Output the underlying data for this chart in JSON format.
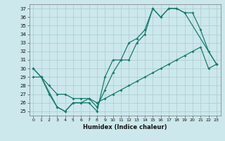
{
  "xlabel": "Humidex (Indice chaleur)",
  "bg_color": "#cce8ec",
  "grid_color": "#aacccc",
  "line_color": "#1a7a6e",
  "xlim": [
    -0.5,
    23.5
  ],
  "ylim": [
    24.5,
    37.5
  ],
  "xticks": [
    0,
    1,
    2,
    3,
    4,
    5,
    6,
    7,
    8,
    9,
    10,
    11,
    12,
    13,
    14,
    15,
    16,
    17,
    18,
    19,
    20,
    21,
    22,
    23
  ],
  "yticks": [
    25,
    26,
    27,
    28,
    29,
    30,
    31,
    32,
    33,
    34,
    35,
    36,
    37
  ],
  "line1_x": [
    0,
    1,
    2,
    3,
    4,
    5,
    6,
    7,
    8,
    9,
    10,
    11,
    12,
    13,
    14,
    15,
    16,
    17,
    18,
    19,
    20,
    21,
    22,
    23
  ],
  "line1_y": [
    30,
    29,
    27,
    25.5,
    25,
    26,
    26,
    26,
    25,
    29,
    31,
    31,
    33,
    33.5,
    34.5,
    37,
    36,
    37,
    37,
    36.5,
    36.5,
    34.5,
    32,
    30.5
  ],
  "line2_x": [
    0,
    1,
    3,
    4,
    5,
    6,
    7,
    8,
    9,
    10,
    11,
    12,
    13,
    14,
    15,
    16,
    17,
    18,
    19,
    23
  ],
  "line2_y": [
    30,
    29,
    25.5,
    25,
    26,
    26,
    26.5,
    25.5,
    27.5,
    29.5,
    31,
    31,
    33,
    34,
    37,
    36,
    37,
    37,
    36.5,
    30.5
  ],
  "line3_x": [
    0,
    1,
    2,
    3,
    4,
    5,
    6,
    7,
    8,
    9,
    10,
    11,
    12,
    13,
    14,
    15,
    16,
    17,
    18,
    19,
    20,
    21,
    22,
    23
  ],
  "line3_y": [
    29,
    29,
    28,
    27,
    27,
    26.5,
    26.5,
    26.5,
    26,
    26.5,
    27,
    27.5,
    28,
    28.5,
    29,
    29.5,
    30,
    30.5,
    31,
    31.5,
    32,
    32.5,
    30,
    30.5
  ]
}
